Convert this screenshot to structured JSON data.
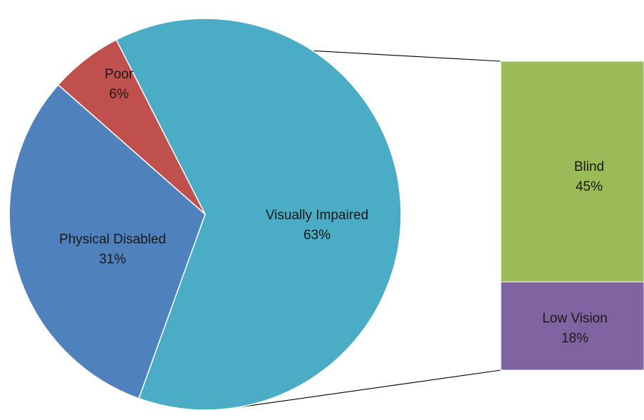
{
  "chart_data": {
    "type": "bar-of-pie",
    "pie": {
      "slices": [
        {
          "label": "Visually Impaired",
          "value": 63,
          "value_label": "63%",
          "color": "#4bacc6"
        },
        {
          "label": "Physical Disabled",
          "value": 31,
          "value_label": "31%",
          "color": "#4f81bd"
        },
        {
          "label": "Poor",
          "value": 6,
          "value_label": "6%",
          "color": "#c0504d"
        }
      ],
      "split_slice": "Visually Impaired"
    },
    "bar": {
      "segments": [
        {
          "label": "Blind",
          "value": 45,
          "value_label": "45%",
          "color": "#9bbb59"
        },
        {
          "label": "Low Vision",
          "value": 18,
          "value_label": "18%",
          "color": "#8064a2"
        }
      ]
    },
    "connector_color": "#000000",
    "slice_border_color": "#ffffff",
    "legend": "none",
    "grid": false
  }
}
